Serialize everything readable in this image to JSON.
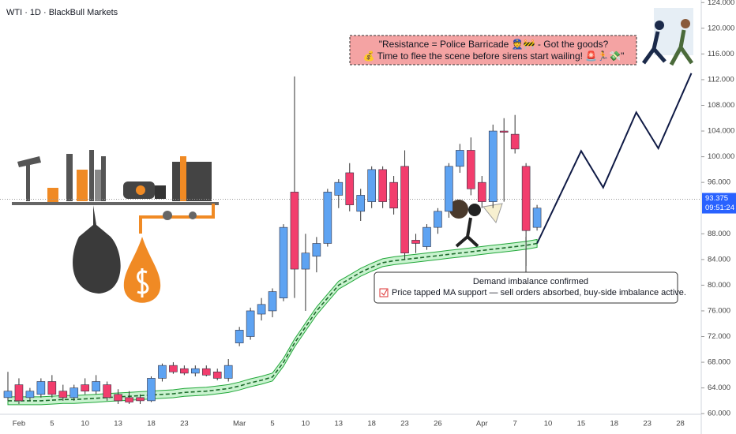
{
  "chart_data": {
    "type": "candlestick",
    "title": "WTI · 1D · BlackBull Markets",
    "categories": [
      null,
      "Feb",
      null,
      null,
      "5",
      null,
      null,
      "10",
      null,
      null,
      "13",
      null,
      null,
      "18",
      null,
      null,
      "23",
      null,
      null,
      null,
      null,
      "Mar",
      null,
      null,
      "5",
      null,
      null,
      "10",
      null,
      null,
      "13",
      null,
      null,
      "18",
      null,
      null,
      "23",
      null,
      null,
      "26",
      null,
      null,
      null,
      "Apr",
      null,
      null,
      "7",
      null,
      null,
      "10",
      null,
      null,
      "15",
      null,
      null,
      "18",
      null,
      null,
      "23",
      null,
      null,
      "28",
      null
    ],
    "open": [
      62.5,
      64.5,
      62.5,
      63,
      65,
      63.5,
      62.5,
      64.5,
      63.5,
      64.5,
      63,
      62.5,
      62.5,
      62,
      65.5,
      67.5,
      67,
      66.3,
      67,
      66.5,
      65.5,
      71,
      72,
      75.5,
      76,
      78,
      94.5,
      82.5,
      84.5,
      86.5,
      94,
      97.5,
      91.5,
      93,
      98,
      96,
      98.5,
      87,
      86,
      89,
      91.5,
      98.5,
      101,
      96,
      93,
      104,
      103.5,
      98.5,
      89,
      null,
      null,
      null,
      null,
      null,
      null,
      null,
      null,
      null,
      null,
      null,
      null,
      null,
      null
    ],
    "high": [
      66.5,
      65.5,
      64,
      65.5,
      66,
      64.5,
      64.5,
      65.5,
      66,
      65,
      63.8,
      63.5,
      63,
      65.8,
      67.8,
      68,
      67.5,
      67.5,
      67.5,
      67,
      68.5,
      73.5,
      76.5,
      78,
      79.5,
      89.5,
      112.5,
      88,
      87.5,
      95,
      96.5,
      99,
      95,
      98.5,
      98.5,
      97,
      101,
      88,
      89.5,
      92,
      99,
      102,
      103,
      97,
      105,
      106,
      106.5,
      99,
      92.5,
      null,
      null,
      null,
      null,
      null,
      null,
      null,
      null,
      null,
      null,
      null,
      null,
      null,
      null
    ],
    "low": [
      62,
      61.5,
      62,
      62.5,
      62.5,
      62,
      62,
      63,
      63,
      62,
      61.5,
      61.5,
      61.5,
      61.8,
      65,
      66.2,
      66,
      65.8,
      65.8,
      65.2,
      65,
      70.5,
      71.5,
      74.5,
      75,
      77.5,
      78,
      76,
      82,
      86,
      92,
      91.5,
      90,
      92,
      92,
      91,
      84,
      85,
      85.5,
      88,
      90.5,
      97.5,
      94,
      92,
      92,
      93,
      100.5,
      83,
      88.5,
      null,
      null,
      null,
      null,
      null,
      null,
      null,
      null,
      null,
      null,
      null,
      null,
      null,
      null
    ],
    "close": [
      63.5,
      62,
      63.5,
      65,
      63,
      62.5,
      64,
      63.5,
      65,
      62.5,
      62,
      61.8,
      62,
      65.5,
      67.5,
      66.5,
      66.3,
      67,
      66,
      65.5,
      67.5,
      73,
      76,
      77,
      79,
      89,
      82.5,
      85,
      86.5,
      94.5,
      96,
      92.5,
      94,
      98,
      93,
      92,
      85,
      86.5,
      89,
      91.5,
      98.5,
      101,
      95,
      93,
      104,
      103.8,
      101.2,
      88.5,
      92,
      null,
      null,
      null,
      null,
      null,
      null,
      null,
      null,
      null,
      null,
      null,
      null,
      null,
      null
    ],
    "up_color": "#5ea3f2",
    "down_color": "#f23d6d",
    "moving_average": {
      "color": "#22a83a",
      "values": [
        62,
        62,
        62,
        62,
        62.1,
        62.2,
        62.2,
        62.3,
        62.4,
        62.5,
        62.6,
        62.7,
        62.8,
        62.9,
        63,
        63.1,
        63.3,
        63.4,
        63.5,
        63.7,
        63.9,
        64.3,
        64.8,
        65.2,
        65.7,
        68,
        71,
        73.5,
        76,
        78,
        80,
        81,
        82,
        82.8,
        83.5,
        83.8,
        84,
        84.2,
        84.4,
        84.6,
        84.8,
        85,
        85.2,
        85.4,
        85.6,
        85.8,
        86,
        86.2,
        86.5,
        null,
        null,
        null,
        null,
        null,
        null,
        null,
        null,
        null,
        null,
        null,
        null,
        null,
        null
      ]
    },
    "projection": {
      "color": "#0f1a45",
      "x": [
        48,
        52,
        54,
        57,
        59,
        62
      ],
      "values": [
        86.5,
        100.9,
        95.2,
        106.9,
        101.3,
        113
      ]
    },
    "last_price": {
      "value": 93.375,
      "countdown": "09:51:24",
      "color": "#2962ff"
    },
    "ylim": [
      59.9,
      124.4
    ],
    "yticks": [
      {
        "value": 60,
        "label": "60.000"
      },
      {
        "value": 64,
        "label": "64.000"
      },
      {
        "value": 68,
        "label": "68.000"
      },
      {
        "value": 72,
        "label": "72.000"
      },
      {
        "value": 76,
        "label": "76.000"
      },
      {
        "value": 80,
        "label": "80.000"
      },
      {
        "value": 84,
        "label": "84.000"
      },
      {
        "value": 88,
        "label": "88.000"
      },
      {
        "value": 96,
        "label": "96.000"
      },
      {
        "value": 100,
        "label": "100.000"
      },
      {
        "value": 104,
        "label": "104.000"
      },
      {
        "value": 108,
        "label": "108.000"
      },
      {
        "value": 112,
        "label": "112.000"
      },
      {
        "value": 116,
        "label": "116.000"
      },
      {
        "value": 120,
        "label": "120.000"
      },
      {
        "value": 124,
        "label": "124.000"
      }
    ],
    "grid": false,
    "annotations": [
      {
        "lines": [
          "\"Resistance = Police Barricade 👮🚧 - Got the goods?",
          "💰 Time to flee the scene before sirens start wailing! 🚨🏃💸\""
        ]
      },
      {
        "lines": [
          "Demand imbalance confirmed",
          "Price tapped MA support — sell orders absorbed, buy-side imbalance active."
        ]
      }
    ]
  }
}
